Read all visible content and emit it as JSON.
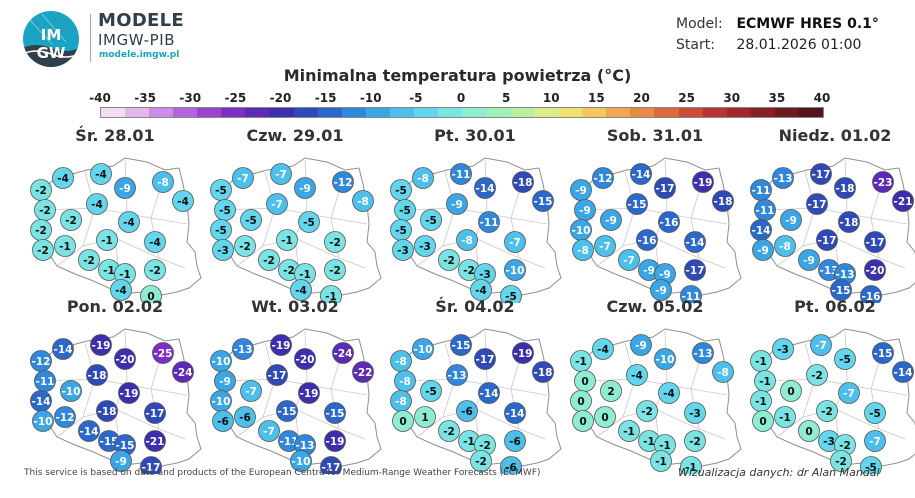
{
  "header": {
    "brand_name": "MODELE",
    "brand_sub": "IMGW-PIB",
    "brand_url": "modele.imgw.pl",
    "logo_text_top": "IM",
    "logo_text_bottom": "GW",
    "model_label": "Model:",
    "model_value": "ECMWF HRES 0.1°",
    "start_label": "Start:",
    "start_value": "28.01.2026 01:00"
  },
  "title": "Minimalna temperatura powietrza (°C)",
  "legend": {
    "ticks": [
      "-40",
      "-35",
      "-30",
      "-25",
      "-20",
      "-15",
      "-10",
      "-5",
      "0",
      "5",
      "10",
      "15",
      "20",
      "25",
      "30",
      "35",
      "40"
    ],
    "colors": [
      "#f2dcf2",
      "#e4b6ee",
      "#cc8ce6",
      "#b465dc",
      "#9a44cf",
      "#7d2fc4",
      "#5d2ab8",
      "#3c2fae",
      "#2f49b8",
      "#2a68cc",
      "#2f88dc",
      "#3aa6e6",
      "#4cc0ea",
      "#62d6ec",
      "#7ae4e4",
      "#8eecd2",
      "#9ef0bc",
      "#b8f0a0",
      "#d8ee8a",
      "#f0e070",
      "#f4c860",
      "#f0a850",
      "#e88a46",
      "#dc6a3e",
      "#cc4c38",
      "#b83432",
      "#a0282c",
      "#862026",
      "#6c1a20",
      "#521418"
    ]
  },
  "panels": [
    {
      "day": "Śr. 28.01",
      "values": [
        -4,
        -4,
        -8,
        -2,
        -9,
        -4,
        -2,
        -4,
        -2,
        -2,
        -2,
        -4,
        -1,
        -1,
        -4,
        -2,
        -1,
        -1,
        -2,
        0,
        -4
      ]
    },
    {
      "day": "Czw. 29.01",
      "values": [
        -7,
        -7,
        -12,
        -5,
        -9,
        -8,
        -5,
        -7,
        -5,
        -5,
        -3,
        -5,
        -2,
        -1,
        -2,
        -2,
        -2,
        -1,
        -2,
        -1,
        -4
      ]
    },
    {
      "day": "Pt. 30.01",
      "values": [
        -8,
        -11,
        -18,
        -5,
        -14,
        -15,
        -5,
        -9,
        -5,
        -5,
        -3,
        -11,
        -3,
        -8,
        -7,
        -2,
        -2,
        -3,
        -10,
        -5,
        -4
      ]
    },
    {
      "day": "Sob. 31.01",
      "values": [
        -12,
        -14,
        -19,
        -9,
        -17,
        -18,
        -9,
        -15,
        -10,
        -9,
        -8,
        -16,
        -7,
        -16,
        -14,
        -7,
        -9,
        -9,
        -17,
        -11,
        -9
      ]
    },
    {
      "day": "Niedz. 01.02",
      "values": [
        -13,
        -17,
        -23,
        -11,
        -18,
        -21,
        -11,
        -17,
        -14,
        -9,
        -9,
        -18,
        -8,
        -17,
        -17,
        -9,
        -13,
        -13,
        -20,
        -16,
        -15
      ]
    },
    {
      "day": "Pon. 02.02",
      "values": [
        -14,
        -19,
        -25,
        -12,
        -20,
        -24,
        -11,
        -18,
        -14,
        -10,
        -10,
        -19,
        -12,
        -18,
        -17,
        -14,
        -15,
        -15,
        -21,
        -17,
        -9
      ]
    },
    {
      "day": "Wt. 03.02",
      "values": [
        -13,
        -19,
        -24,
        -10,
        -20,
        -22,
        -9,
        -17,
        -10,
        -7,
        -6,
        -19,
        -6,
        -15,
        -15,
        -7,
        -11,
        -13,
        -19,
        -17,
        -10
      ]
    },
    {
      "day": "Śr. 04.02",
      "values": [
        -10,
        -15,
        -19,
        -8,
        -17,
        -18,
        -8,
        -13,
        -8,
        -5,
        0,
        -14,
        1,
        -6,
        -14,
        -2,
        -1,
        -2,
        -6,
        -6,
        -2
      ]
    },
    {
      "day": "Czw. 05.02",
      "values": [
        -4,
        -9,
        -13,
        -1,
        -10,
        -8,
        0,
        -4,
        0,
        2,
        0,
        -4,
        0,
        -2,
        -3,
        -1,
        -1,
        -1,
        -2,
        -1,
        -1
      ]
    },
    {
      "day": "Pt. 06.02",
      "values": [
        -3,
        -7,
        -15,
        -1,
        -5,
        -14,
        -1,
        -2,
        -1,
        0,
        0,
        -7,
        -1,
        -2,
        -5,
        0,
        -3,
        -2,
        -7,
        -5,
        -2
      ]
    }
  ],
  "footer": {
    "left": "This service is based on data and products of the European Centre for Medium-Range Weather Forecasts (ECMWF)",
    "right": "Wizualizacja danych: dr Alan Mandal"
  }
}
